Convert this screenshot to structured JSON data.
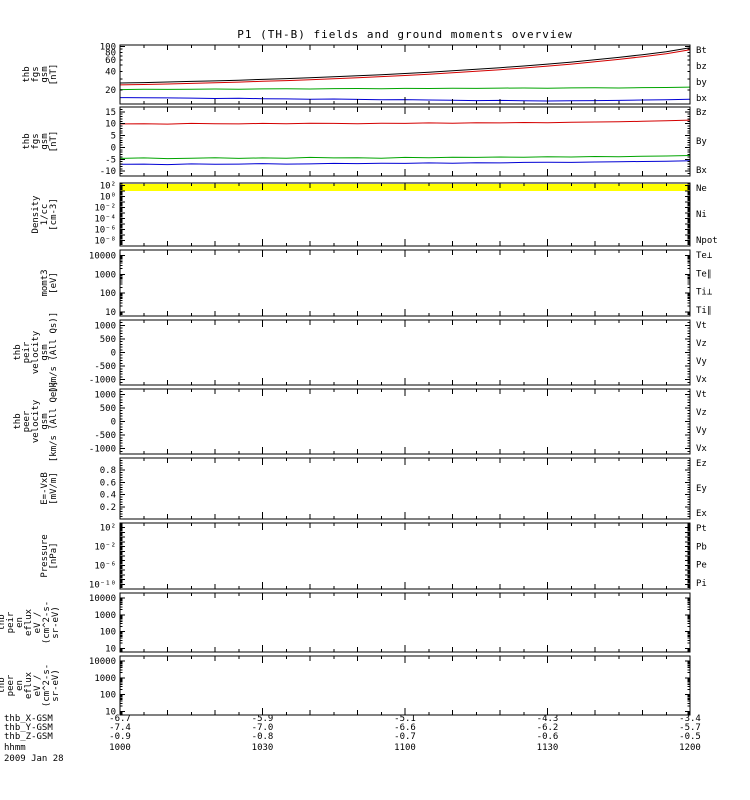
{
  "chart_data": {
    "type": "line",
    "title": "P1 (TH-B) fields and ground moments overview",
    "date_label": "2009 Jan 28",
    "time_axis": {
      "unit": "hhmm",
      "tick_labels": [
        "1000",
        "1030",
        "1100",
        "1130",
        "1200"
      ],
      "range_minutes": [
        600,
        720
      ],
      "minor_step_minutes": 5,
      "major_step_minutes": 30
    },
    "bottom_rows": [
      {
        "label": "thb_X-GSM",
        "values": [
          "-6.7",
          "-5.9",
          "-5.1",
          "-4.3",
          "-3.4"
        ]
      },
      {
        "label": "thb_Y-GSM",
        "values": [
          "-7.4",
          "-7.0",
          "-6.6",
          "-6.2",
          "-5.7"
        ]
      },
      {
        "label": "thb_Z-GSM",
        "values": [
          "-0.9",
          "-0.8",
          "-0.7",
          "-0.6",
          "-0.5"
        ]
      },
      {
        "label": "hhmm",
        "values": [
          "1000",
          "1030",
          "1100",
          "1130",
          "1200"
        ]
      }
    ],
    "colors": {
      "black": "#000000",
      "red": "#d40000",
      "green": "#00a400",
      "blue": "#0000d4",
      "teal": "#009898",
      "yellow": "#ffff00"
    },
    "series_x_minutes": [
      600,
      605,
      610,
      615,
      620,
      625,
      630,
      635,
      640,
      645,
      650,
      655,
      660,
      665,
      670,
      675,
      680,
      685,
      690,
      695,
      700,
      705,
      710,
      715,
      720
    ],
    "panels": [
      {
        "id": "fgs-gsm-total",
        "ylabel_lines": [
          "thb",
          "fgs",
          "gsm",
          "[nT]"
        ],
        "scale": "log",
        "ylim": [
          12,
          105
        ],
        "yticks": [
          {
            "v": 100,
            "t": "100"
          },
          {
            "v": 80,
            "t": "80"
          },
          {
            "v": 60,
            "t": "60"
          },
          {
            "v": 40,
            "t": "40"
          },
          {
            "v": 20,
            "t": "20"
          }
        ],
        "right_labels": [
          {
            "t": "Bt",
            "c": "black"
          },
          {
            "t": "bz",
            "c": "red"
          },
          {
            "t": "by",
            "c": "green"
          },
          {
            "t": "bx",
            "c": "blue"
          }
        ],
        "series": [
          {
            "name": "Bt",
            "color": "black",
            "y": [
              26,
              26.4,
              26.9,
              27.5,
              28.1,
              28.8,
              29.6,
              30.5,
              31.5,
              32.6,
              33.8,
              35.2,
              36.8,
              38.6,
              40.6,
              42.9,
              45.5,
              48.5,
              52,
              56.1,
              60.9,
              66.6,
              73.5,
              82,
              95
            ]
          },
          {
            "name": "bz",
            "color": "red",
            "y": [
              24.2,
              24.6,
              25,
              25.6,
              26.2,
              26.8,
              27.6,
              28.4,
              29.3,
              30.3,
              31.5,
              32.8,
              34.2,
              35.9,
              37.8,
              39.9,
              42.3,
              45.1,
              48.3,
              52.1,
              56.6,
              61.9,
              68.3,
              76.2,
              88
            ]
          },
          {
            "name": "by",
            "color": "green",
            "y": [
              20.4,
              20.6,
              20.5,
              20.7,
              20.8,
              20.6,
              20.9,
              21,
              20.8,
              21.1,
              21.2,
              21,
              21.3,
              21.2,
              21.4,
              21.3,
              21.5,
              21.6,
              21.4,
              21.7,
              21.8,
              21.6,
              21.9,
              22,
              22.3
            ]
          },
          {
            "name": "bx",
            "color": "blue",
            "y": [
              15.2,
              15.1,
              15,
              14.9,
              14.7,
              14.8,
              14.6,
              14.5,
              14.3,
              14.4,
              14.2,
              14,
              14.1,
              13.9,
              13.8,
              13.6,
              13.7,
              13.5,
              13.4,
              13.5,
              13.6,
              13.7,
              13.9,
              14,
              14.3
            ]
          }
        ]
      },
      {
        "id": "fgs-gsm-components",
        "ylabel_lines": [
          "thb",
          "fgs",
          "gsm",
          "[nT]"
        ],
        "scale": "linear",
        "ylim": [
          -12,
          17
        ],
        "yticks": [
          {
            "v": 15,
            "t": "15"
          },
          {
            "v": 10,
            "t": "10"
          },
          {
            "v": 5,
            "t": "5"
          },
          {
            "v": 0,
            "t": "0"
          },
          {
            "v": -5,
            "t": "-5"
          },
          {
            "v": -10,
            "t": "-10"
          }
        ],
        "right_labels": [
          {
            "t": "Bz",
            "c": "red"
          },
          {
            "t": "By",
            "c": "green"
          },
          {
            "t": "Bx",
            "c": "blue"
          }
        ],
        "series": [
          {
            "name": "Bz",
            "color": "red",
            "y": [
              9.9,
              10,
              9.8,
              10.1,
              10,
              9.9,
              10.1,
              10,
              10.2,
              10.1,
              10,
              10.2,
              10.1,
              10.3,
              10.2,
              10.4,
              10.3,
              10.5,
              10.4,
              10.6,
              10.7,
              10.8,
              11,
              11.2,
              11.5
            ]
          },
          {
            "name": "By",
            "color": "green",
            "y": [
              -4.6,
              -4.4,
              -4.7,
              -4.5,
              -4.3,
              -4.6,
              -4.4,
              -4.5,
              -4.2,
              -4.4,
              -4.3,
              -4.5,
              -4.2,
              -4.3,
              -4.1,
              -4.2,
              -4,
              -4.1,
              -3.9,
              -4,
              -3.8,
              -3.9,
              -3.7,
              -3.6,
              -3.4
            ]
          },
          {
            "name": "Bx",
            "color": "blue",
            "y": [
              -7.1,
              -7,
              -7.2,
              -6.9,
              -7.1,
              -7,
              -6.8,
              -7,
              -6.9,
              -6.7,
              -6.8,
              -6.6,
              -6.7,
              -6.5,
              -6.6,
              -6.4,
              -6.5,
              -6.3,
              -6.2,
              -6.3,
              -6.1,
              -6,
              -5.9,
              -5.8,
              -5.6
            ]
          }
        ]
      },
      {
        "id": "density",
        "ylabel_lines": [
          "Density",
          "1/cc",
          "[cm-3]"
        ],
        "scale": "log",
        "ylim": [
          1e-09,
          300
        ],
        "yticks": [
          {
            "v": 100,
            "t": "10²"
          },
          {
            "v": 1,
            "t": "10⁰"
          },
          {
            "v": 0.01,
            "t": "10⁻²"
          },
          {
            "v": 0.0001,
            "t": "10⁻⁴"
          },
          {
            "v": 1e-06,
            "t": "10⁻⁶"
          },
          {
            "v": 1e-08,
            "t": "10⁻⁸"
          }
        ],
        "right_labels": [
          {
            "t": "Ne",
            "c": "red"
          },
          {
            "t": "Ni",
            "c": "black"
          },
          {
            "t": "Npot",
            "c": "blue"
          }
        ],
        "top_band_color": "yellow",
        "series": []
      },
      {
        "id": "temperature",
        "ylabel_lines": [
          "momt3",
          "[eV]"
        ],
        "scale": "log",
        "ylim": [
          6,
          20000
        ],
        "yticks": [
          {
            "v": 10000,
            "t": "10000"
          },
          {
            "v": 1000,
            "t": "1000"
          },
          {
            "v": 100,
            "t": "100"
          },
          {
            "v": 10,
            "t": "10"
          }
        ],
        "right_labels": [
          {
            "t": "Te⊥",
            "c": "red"
          },
          {
            "t": "Te∥",
            "c": "black"
          },
          {
            "t": "Ti⊥",
            "c": "teal"
          },
          {
            "t": "Ti∥",
            "c": "green"
          }
        ],
        "series": []
      },
      {
        "id": "peir-velocity-gsm",
        "ylabel_lines": [
          "thb",
          "peir",
          "velocity",
          "gsm",
          "[km/s (All Qs)]"
        ],
        "scale": "linear",
        "ylim": [
          -1200,
          1200
        ],
        "yticks": [
          {
            "v": 1000,
            "t": "1000"
          },
          {
            "v": 500,
            "t": "500"
          },
          {
            "v": 0,
            "t": "0"
          },
          {
            "v": -500,
            "t": "-500"
          },
          {
            "v": -1000,
            "t": "-1000"
          }
        ],
        "right_labels": [
          {
            "t": "Vt",
            "c": "black"
          },
          {
            "t": "Vz",
            "c": "red"
          },
          {
            "t": "Vy",
            "c": "green"
          },
          {
            "t": "Vx",
            "c": "blue"
          }
        ],
        "series": []
      },
      {
        "id": "peer-velocity-gsm",
        "ylabel_lines": [
          "thb",
          "peer",
          "velocity",
          "gsm",
          "[km/s (All Qe)]"
        ],
        "scale": "linear",
        "ylim": [
          -1200,
          1200
        ],
        "yticks": [
          {
            "v": 1000,
            "t": "1000"
          },
          {
            "v": 500,
            "t": "500"
          },
          {
            "v": 0,
            "t": "0"
          },
          {
            "v": -500,
            "t": "-500"
          },
          {
            "v": -1000,
            "t": "-1000"
          }
        ],
        "right_labels": [
          {
            "t": "Vt",
            "c": "black"
          },
          {
            "t": "Vz",
            "c": "red"
          },
          {
            "t": "Vy",
            "c": "green"
          },
          {
            "t": "Vx",
            "c": "blue"
          }
        ],
        "series": []
      },
      {
        "id": "e-field-vxb",
        "ylabel_lines": [
          "E=-VxB",
          "[mV/m]"
        ],
        "scale": "linear",
        "ylim": [
          0,
          1
        ],
        "yticks": [
          {
            "v": 0.8,
            "t": "0.8"
          },
          {
            "v": 0.6,
            "t": "0.6"
          },
          {
            "v": 0.4,
            "t": "0.4"
          },
          {
            "v": 0.2,
            "t": "0.2"
          }
        ],
        "right_labels": [
          {
            "t": "Ez",
            "c": "red"
          },
          {
            "t": "Ey",
            "c": "green"
          },
          {
            "t": "Ex",
            "c": "blue"
          }
        ],
        "series": []
      },
      {
        "id": "pressure",
        "ylabel_lines": [
          "Pressure",
          "[nPa]"
        ],
        "scale": "log",
        "ylim": [
          1e-11,
          1000
        ],
        "yticks": [
          {
            "v": 100,
            "t": "10²"
          },
          {
            "v": 0.01,
            "t": "10⁻²"
          },
          {
            "v": 1e-06,
            "t": "10⁻⁶"
          },
          {
            "v": 1e-10,
            "t": "10⁻¹⁰"
          }
        ],
        "right_labels": [
          {
            "t": "Pt",
            "c": "black"
          },
          {
            "t": "Pb",
            "c": "red"
          },
          {
            "t": "Pe",
            "c": "green"
          },
          {
            "t": "Pi",
            "c": "teal"
          }
        ],
        "series": []
      },
      {
        "id": "peir-en-eflux",
        "ylabel_lines": [
          "thb",
          "peir",
          "en",
          "eflux",
          "eV /",
          "(cm^2-s-",
          "sr-eV)"
        ],
        "scale": "log",
        "ylim": [
          6,
          20000
        ],
        "yticks": [
          {
            "v": 10000,
            "t": "10000"
          },
          {
            "v": 1000,
            "t": "1000"
          },
          {
            "v": 100,
            "t": "100"
          },
          {
            "v": 10,
            "t": "10"
          }
        ],
        "right_labels": [],
        "series": []
      },
      {
        "id": "peer-en-eflux",
        "ylabel_lines": [
          "thb",
          "peer",
          "en",
          "eflux",
          "eV /",
          "(cm^2-s-",
          "sr-eV)"
        ],
        "scale": "log",
        "ylim": [
          6,
          20000
        ],
        "yticks": [
          {
            "v": 10000,
            "t": "10000"
          },
          {
            "v": 1000,
            "t": "1000"
          },
          {
            "v": 100,
            "t": "100"
          },
          {
            "v": 10,
            "t": "10"
          }
        ],
        "right_labels": [],
        "series": []
      }
    ]
  }
}
